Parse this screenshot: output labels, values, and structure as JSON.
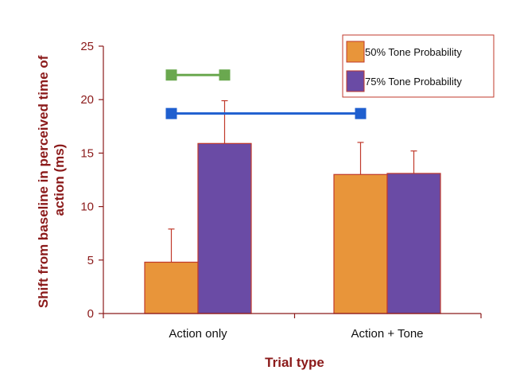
{
  "chart_data": {
    "type": "bar",
    "title": "",
    "xlabel": "Trial type",
    "ylabel": "Shift from baseline in perceived time of action (ms)",
    "ylabel_lines": [
      "Shift from baseline in perceived time of",
      "action (ms)"
    ],
    "ylim": [
      0,
      25
    ],
    "yticks": [
      0,
      5,
      10,
      15,
      20,
      25
    ],
    "categories": [
      "Action only",
      "Action + Tone"
    ],
    "series": [
      {
        "name": "50% Tone Probability",
        "color": "#e8953a",
        "values": [
          4.8,
          13.0
        ],
        "error_upper": [
          7.9,
          16.0
        ]
      },
      {
        "name": "75% Tone Probability",
        "color": "#6a4ba5",
        "values": [
          15.9,
          13.1
        ],
        "error_upper": [
          19.9,
          15.2
        ]
      }
    ],
    "significance_bars": [
      {
        "color": "#6aa84f",
        "y": 22.3,
        "from": {
          "category": 0,
          "series": 0
        },
        "to": {
          "category": 0,
          "series": 1
        }
      },
      {
        "color": "#1f5fcf",
        "y": 18.7,
        "from": {
          "category": 0,
          "series": 0
        },
        "to": {
          "category": 1,
          "series": 0
        }
      }
    ],
    "legend_position": "top-right",
    "grid": false,
    "colors": {
      "axis": "#8b1a1a",
      "bar_outline": "#c0392b",
      "error_bar": "#c0392b"
    }
  }
}
